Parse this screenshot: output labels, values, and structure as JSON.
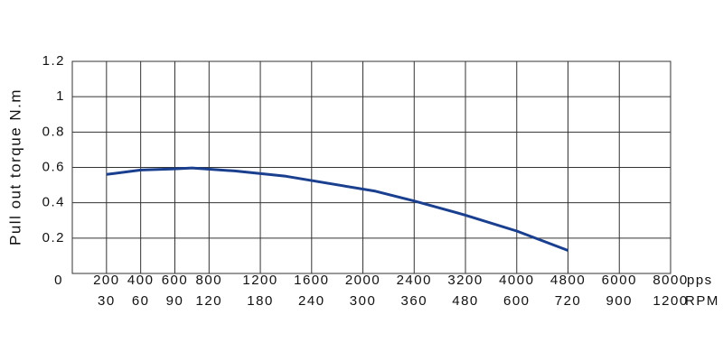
{
  "chart_data": {
    "type": "line",
    "y_label": "Pull out torque N.m",
    "x_unit": "pps",
    "x2_unit": "RPM",
    "xticks": [
      0,
      200,
      400,
      600,
      800,
      1200,
      1600,
      2000,
      2400,
      3200,
      4000,
      4800,
      6000,
      8000
    ],
    "x2_labels": [
      null,
      "30",
      "60",
      "90",
      "120",
      "180",
      "240",
      "300",
      "360",
      "480",
      "600",
      "720",
      "900",
      "1200"
    ],
    "xlim": [
      0,
      8000
    ],
    "ylim": [
      0,
      1.2
    ],
    "yticks": [
      0.2,
      0.4,
      0.6,
      0.8,
      1.0,
      1.2
    ],
    "grid": true,
    "series": [
      {
        "color": "#1a3f8f",
        "x": [
          200,
          400,
          600,
          700,
          1000,
          1400,
          2100,
          2400,
          3200,
          4000,
          4800
        ],
        "values": [
          0.56,
          0.585,
          0.592,
          0.597,
          0.58,
          0.55,
          0.465,
          0.41,
          0.33,
          0.24,
          0.13
        ]
      }
    ]
  }
}
